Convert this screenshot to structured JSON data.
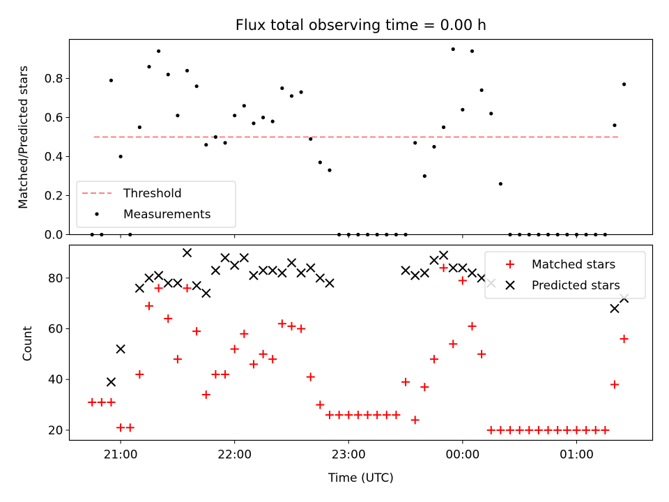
{
  "figure": {
    "title": "Flux total observing time = 0.00 h"
  },
  "chart_data": [
    {
      "type": "scatter",
      "panel": "top",
      "title": "Flux total observing time = 0.00 h",
      "xlabel": "",
      "ylabel": "Matched/Predicted stars",
      "x_axis_type": "time",
      "xlim": [
        "20:33",
        "01:40"
      ],
      "ylim": [
        0,
        1.0
      ],
      "yticks": [
        0.0,
        0.2,
        0.4,
        0.6,
        0.8
      ],
      "ytick_labels": [
        "0.0",
        "0.2",
        "0.4",
        "0.6",
        "0.8"
      ],
      "legend": {
        "location": "lower-left",
        "entries": [
          "Threshold",
          "Measurements"
        ]
      },
      "grid": false,
      "threshold": {
        "name": "Threshold",
        "y": 0.5,
        "x_start": "20:46",
        "x_end": "01:23",
        "color": "#ff8080",
        "style": "dashed"
      },
      "series": [
        {
          "name": "Measurements",
          "color": "#000000",
          "marker": "dot",
          "x": [
            "20:45",
            "20:50",
            "20:55",
            "21:00",
            "21:05",
            "21:10",
            "21:15",
            "21:20",
            "21:25",
            "21:30",
            "21:35",
            "21:40",
            "21:45",
            "21:50",
            "21:55",
            "22:00",
            "22:05",
            "22:10",
            "22:15",
            "22:20",
            "22:25",
            "22:30",
            "22:35",
            "22:40",
            "22:45",
            "22:50",
            "22:55",
            "23:00",
            "23:05",
            "23:10",
            "23:15",
            "23:20",
            "23:25",
            "23:30",
            "23:35",
            "23:40",
            "23:45",
            "23:50",
            "23:55",
            "00:00",
            "00:05",
            "00:10",
            "00:15",
            "00:20",
            "00:25",
            "00:30",
            "00:35",
            "00:40",
            "00:45",
            "00:50",
            "00:55",
            "01:00",
            "01:05",
            "01:10",
            "01:15",
            "01:20",
            "01:25"
          ],
          "y": [
            0.0,
            0.0,
            0.79,
            0.4,
            0.0,
            0.55,
            0.86,
            0.94,
            0.82,
            0.61,
            0.84,
            0.76,
            0.46,
            0.5,
            0.47,
            0.61,
            0.66,
            0.57,
            0.6,
            0.58,
            0.75,
            0.71,
            0.73,
            0.49,
            0.37,
            0.33,
            0.0,
            0.0,
            0.0,
            0.0,
            0.0,
            0.0,
            0.0,
            0.0,
            0.47,
            0.3,
            0.45,
            0.55,
            0.95,
            0.64,
            0.94,
            0.74,
            0.62,
            0.26,
            0.0,
            0.0,
            0.0,
            0.0,
            0.0,
            0.0,
            0.0,
            0.0,
            0.0,
            0.0,
            0.0,
            0.56,
            0.77
          ]
        }
      ]
    },
    {
      "type": "scatter",
      "panel": "bottom",
      "xlabel": "Time (UTC)",
      "ylabel": "Count",
      "x_axis_type": "time",
      "xlim": [
        "20:33",
        "01:40"
      ],
      "ylim": [
        16,
        93
      ],
      "xticks": [
        "21:00",
        "22:00",
        "23:00",
        "00:00",
        "01:00"
      ],
      "yticks": [
        20,
        40,
        60,
        80
      ],
      "ytick_labels": [
        "20",
        "40",
        "60",
        "80"
      ],
      "legend": {
        "location": "top-right",
        "entries": [
          "Matched stars",
          "Predicted stars"
        ]
      },
      "grid": false,
      "series": [
        {
          "name": "Matched stars",
          "color": "#ff0000",
          "marker": "plus",
          "x": [
            "20:45",
            "20:50",
            "20:55",
            "21:00",
            "21:05",
            "21:10",
            "21:15",
            "21:20",
            "21:25",
            "21:30",
            "21:35",
            "21:40",
            "21:45",
            "21:50",
            "21:55",
            "22:00",
            "22:05",
            "22:10",
            "22:15",
            "22:20",
            "22:25",
            "22:30",
            "22:35",
            "22:40",
            "22:45",
            "22:50",
            "22:55",
            "23:00",
            "23:05",
            "23:10",
            "23:15",
            "23:20",
            "23:25",
            "23:30",
            "23:35",
            "23:40",
            "23:45",
            "23:50",
            "23:55",
            "00:00",
            "00:05",
            "00:10",
            "00:15",
            "00:20",
            "00:25",
            "00:30",
            "00:35",
            "00:40",
            "00:45",
            "00:50",
            "00:55",
            "01:00",
            "01:05",
            "01:10",
            "01:15",
            "01:20",
            "01:25"
          ],
          "y": [
            31,
            31,
            31,
            21,
            21,
            42,
            69,
            76,
            64,
            48,
            76,
            59,
            34,
            42,
            42,
            52,
            58,
            46,
            50,
            48,
            62,
            61,
            60,
            41,
            30,
            26,
            26,
            26,
            26,
            26,
            26,
            26,
            26,
            39,
            24,
            37,
            48,
            84,
            54,
            79,
            61,
            50,
            20,
            20,
            20,
            20,
            20,
            20,
            20,
            20,
            20,
            20,
            20,
            20,
            20,
            38,
            56
          ]
        },
        {
          "name": "Predicted stars",
          "color": "#000000",
          "marker": "x",
          "x": [
            "20:55",
            "21:00",
            "21:10",
            "21:15",
            "21:20",
            "21:25",
            "21:30",
            "21:35",
            "21:40",
            "21:45",
            "21:50",
            "21:55",
            "22:00",
            "22:05",
            "22:10",
            "22:15",
            "22:20",
            "22:25",
            "22:30",
            "22:35",
            "22:40",
            "22:45",
            "22:50",
            "23:30",
            "23:35",
            "23:40",
            "23:45",
            "23:50",
            "23:55",
            "00:00",
            "00:05",
            "00:10",
            "00:15",
            "01:20",
            "01:25"
          ],
          "y": [
            39,
            52,
            76,
            80,
            81,
            78,
            78,
            90,
            77,
            74,
            83,
            88,
            85,
            88,
            81,
            83,
            83,
            82,
            86,
            82,
            84,
            80,
            78,
            83,
            81,
            82,
            87,
            89,
            84,
            84,
            82,
            80,
            78,
            68,
            72
          ]
        }
      ]
    }
  ]
}
